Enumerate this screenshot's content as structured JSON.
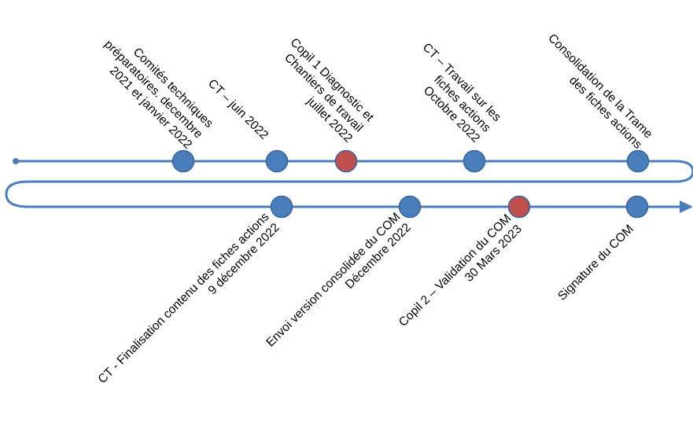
{
  "colors": {
    "line": "#4a7ebb",
    "dot_standard": "#4a7ebb",
    "dot_highlight": "#c0504d",
    "dot_outline": "#3465a4",
    "text": "#000000"
  },
  "top_row": [
    {
      "id": "ct-preparatoires",
      "highlight": false,
      "lines": [
        "Comités techniques",
        "préparatoires. decembre",
        "2021 et janvier 2022"
      ]
    },
    {
      "id": "ct-juin-2022",
      "highlight": false,
      "lines": [
        "CT – juin 2022"
      ]
    },
    {
      "id": "copil-1",
      "highlight": true,
      "lines": [
        "Copil 1 Diagnostic et",
        "Chantiers de travail",
        "juillet 2022"
      ]
    },
    {
      "id": "ct-fiches-octobre",
      "highlight": false,
      "lines": [
        "CT – Travail sur les",
        "fiches actions",
        "Octobre 2022"
      ]
    },
    {
      "id": "consolidation-trame",
      "highlight": false,
      "lines": [
        "Consolidation de la Trame",
        "des fiches actions"
      ]
    }
  ],
  "bottom_row": [
    {
      "id": "ct-finalisation",
      "highlight": false,
      "lines": [
        "CT - Finalisation contenu des fiches actions",
        "9 décembre 2022"
      ]
    },
    {
      "id": "envoi-version",
      "highlight": false,
      "lines": [
        "Envoi version consolidée du COM",
        "Décembre 2022"
      ]
    },
    {
      "id": "copil-2",
      "highlight": true,
      "lines": [
        "Copil 2 – Validation du COM",
        "30 Mars 2023"
      ]
    },
    {
      "id": "signature-com",
      "highlight": false,
      "lines": [
        "Signature du COM"
      ]
    }
  ]
}
